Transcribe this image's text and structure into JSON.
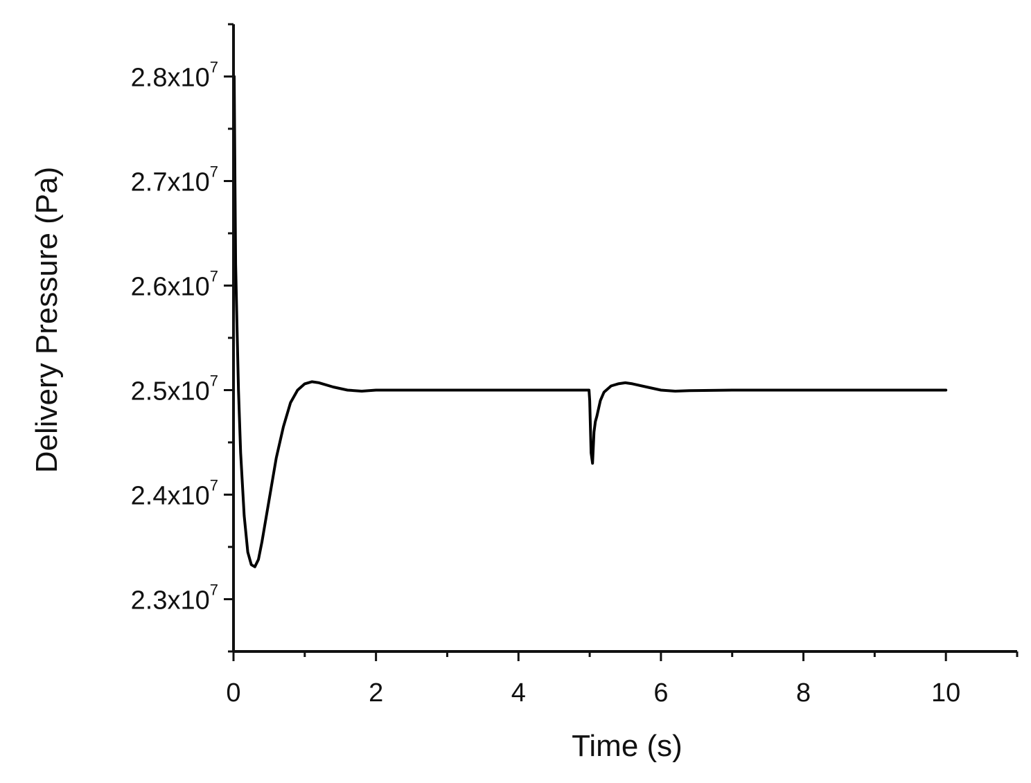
{
  "chart_data": {
    "type": "line",
    "title": "",
    "xlabel": "Time (s)",
    "ylabel": "Delivery Pressure (Pa)",
    "xlim": [
      0,
      11
    ],
    "ylim": [
      22500000,
      28500000
    ],
    "x_major_ticks": [
      0,
      2,
      4,
      6,
      8,
      10
    ],
    "x_tick_labels": [
      "0",
      "2",
      "4",
      "6",
      "8",
      "10"
    ],
    "x_minor_ticks": [
      1,
      3,
      5,
      7,
      9,
      11
    ],
    "y_major_ticks": [
      23000000,
      24000000,
      25000000,
      26000000,
      27000000,
      28000000
    ],
    "y_tick_labels": [
      {
        "mantissa": "2.3x10",
        "exponent": "7"
      },
      {
        "mantissa": "2.4x10",
        "exponent": "7"
      },
      {
        "mantissa": "2.5x10",
        "exponent": "7"
      },
      {
        "mantissa": "2.6x10",
        "exponent": "7"
      },
      {
        "mantissa": "2.7x10",
        "exponent": "7"
      },
      {
        "mantissa": "2.8x10",
        "exponent": "7"
      }
    ],
    "y_minor_ticks": [
      22500000,
      23500000,
      24500000,
      25500000,
      26500000,
      27500000,
      28500000
    ],
    "grid": false,
    "series": [
      {
        "color": "#000000",
        "x": [
          0,
          0.01,
          0.02,
          0.03,
          0.05,
          0.07,
          0.1,
          0.15,
          0.2,
          0.25,
          0.3,
          0.35,
          0.4,
          0.5,
          0.6,
          0.7,
          0.8,
          0.9,
          1.0,
          1.1,
          1.2,
          1.4,
          1.6,
          1.8,
          2.0,
          3.0,
          4.0,
          4.99,
          5.0,
          5.02,
          5.04,
          5.06,
          5.08,
          5.1,
          5.15,
          5.2,
          5.3,
          5.4,
          5.5,
          5.6,
          5.8,
          6.0,
          6.2,
          6.4,
          7.0,
          8.0,
          9.0,
          10.0
        ],
        "y": [
          27900000,
          28000000,
          27000000,
          26200000,
          25600000,
          25000000,
          24400000,
          23800000,
          23450000,
          23330000,
          23310000,
          23380000,
          23550000,
          23950000,
          24350000,
          24650000,
          24880000,
          25000000,
          25060000,
          25080000,
          25070000,
          25030000,
          25000000,
          24990000,
          25000000,
          25000000,
          25000000,
          25000000,
          24900000,
          24400000,
          24300000,
          24600000,
          24700000,
          24750000,
          24900000,
          24980000,
          25040000,
          25060000,
          25070000,
          25060000,
          25030000,
          25000000,
          24990000,
          24995000,
          25000000,
          25000000,
          25000000,
          25000000
        ]
      }
    ]
  }
}
